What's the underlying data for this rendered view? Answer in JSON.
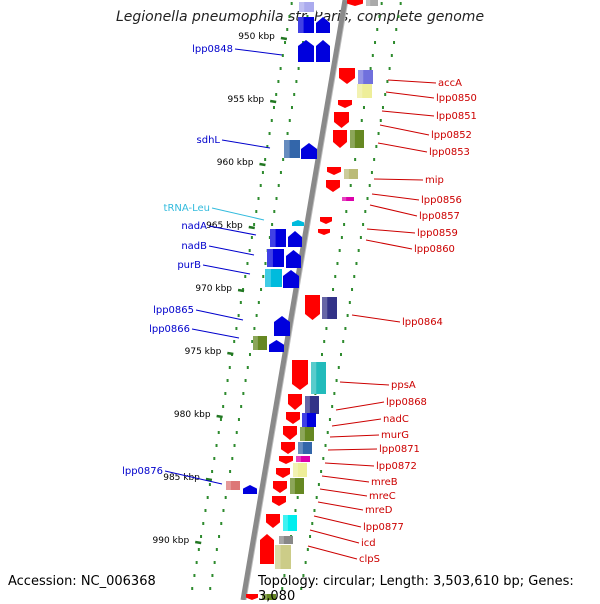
{
  "title": "Legionella pneumophila str. Paris, complete genome",
  "footer": {
    "accession": "Accession: NC_006368",
    "topology": "Topology: circular; Length: 3,503,610 bp; Genes: 3,080"
  },
  "colors": {
    "backbone": "#8a8a8a",
    "dotted_track": "#2e8b2e",
    "left_label": "#0000cc",
    "right_label": "#cc0000",
    "trna_label": "#33bbdd"
  },
  "kbp_marks": [
    {
      "label": "950 kbp"
    },
    {
      "label": "955 kbp"
    },
    {
      "label": "960 kbp"
    },
    {
      "label": "965 kbp"
    },
    {
      "label": "970 kbp"
    },
    {
      "label": "975 kbp"
    },
    {
      "label": "980 kbp"
    },
    {
      "label": "985 kbp"
    },
    {
      "label": "990 kbp"
    }
  ],
  "left_labels": [
    "lpp0848",
    "sdhL",
    "tRNA-Leu",
    "nadA",
    "nadB",
    "purB",
    "lpp0865",
    "lpp0866",
    "lpp0876"
  ],
  "right_labels": [
    "accA",
    "lpp0850",
    "lpp0851",
    "lpp0852",
    "lpp0853",
    "mip",
    "lpp0856",
    "lpp0857",
    "lpp0859",
    "lpp0860",
    "lpp0864",
    "ppsA",
    "lpp0868",
    "nadC",
    "murG",
    "lpp0871",
    "lpp0872",
    "mreB",
    "mreC",
    "mreD",
    "lpp0877",
    "icd",
    "clpS"
  ]
}
